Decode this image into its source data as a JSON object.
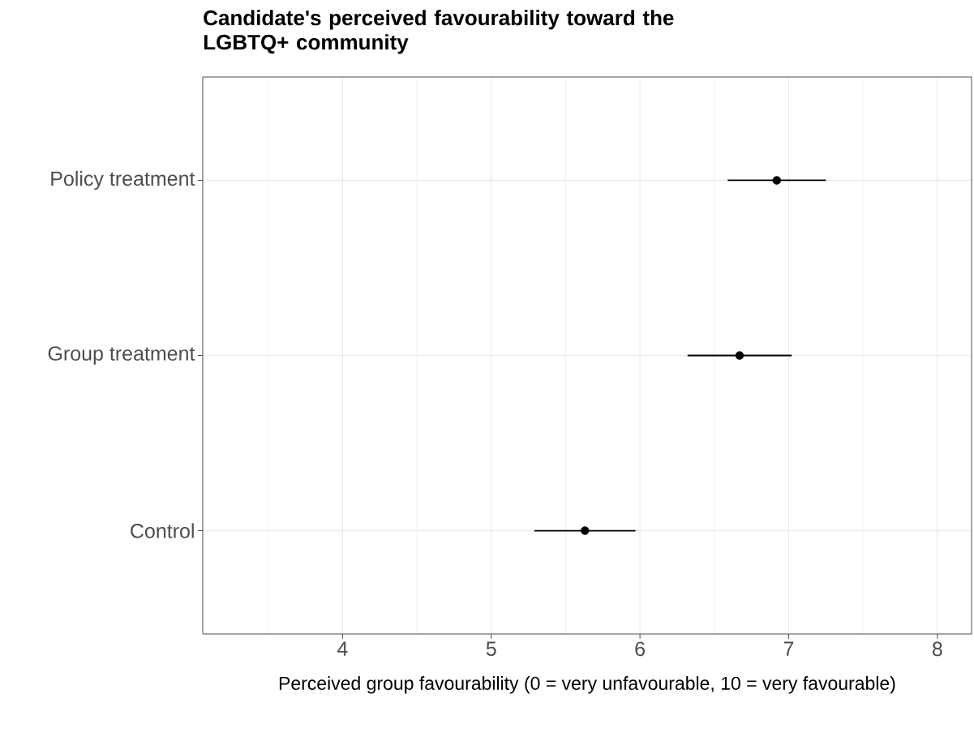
{
  "chart_data": {
    "type": "scatter",
    "orientation": "horizontal",
    "title": "Candidate's perceived favourability toward the LGBTQ+ community",
    "xlabel": "Perceived group favourability (0 = very unfavourable, 10 = very favourable)",
    "categories": [
      "Policy treatment",
      "Group treatment",
      "Control"
    ],
    "values": [
      6.92,
      6.67,
      5.63
    ],
    "errors": [
      0.33,
      0.35,
      0.34
    ],
    "color": "#000000",
    "marker": "circle",
    "legend": false,
    "grid": true,
    "xlim": [
      3.06,
      8.23
    ],
    "xticks": [
      4,
      5,
      6,
      7,
      8
    ]
  }
}
